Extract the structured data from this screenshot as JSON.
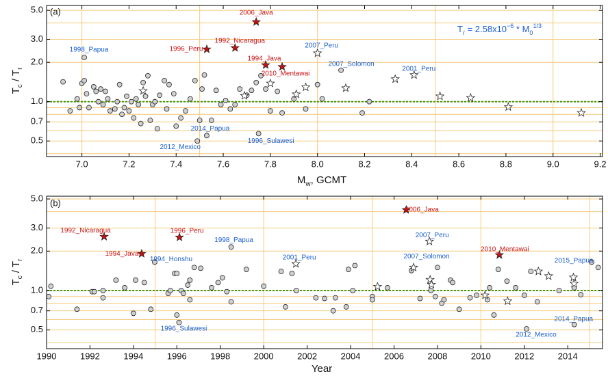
{
  "chart_data": [
    {
      "type": "scatter",
      "panel_label": "(a)",
      "x_label": [
        "M",
        "w",
        ", GCMT"
      ],
      "y_label": [
        "T",
        "c",
        " / T",
        "r"
      ],
      "formula": [
        "T",
        "r",
        " = 2.58x10",
        "−6",
        " * M",
        "0",
        "1/3"
      ],
      "xlim": [
        6.85,
        9.21
      ],
      "ylim": [
        0.38,
        5.45
      ],
      "log_y": true,
      "xticks": [
        {
          "value": 7.0,
          "label": "7.0"
        },
        7.2,
        7.4,
        7.6,
        7.8,
        {
          "value": 8.0,
          "label": "8.0"
        },
        8.2,
        8.4,
        8.6,
        8.8,
        {
          "value": 9.0,
          "label": "9.0"
        },
        9.2
      ],
      "yticks": [
        0.5,
        0.7,
        {
          "value": 1,
          "label": "1.0"
        },
        {
          "value": 2,
          "label": "2.0"
        },
        {
          "value": 3,
          "label": "3.0"
        },
        {
          "value": 5,
          "label": "5.0"
        }
      ],
      "ygrid": [
        0.4,
        0.5,
        0.6,
        0.7,
        0.8,
        0.9,
        1,
        2,
        3,
        4,
        5
      ],
      "xgrid": [
        7.0,
        7.5,
        8.0,
        8.5,
        9.0
      ],
      "grid_color": "#f5c97a",
      "reference_line": 1,
      "reference_color": "#3a9a1a",
      "series": [
        {
          "marker": "circle",
          "color": "#d0d0d0",
          "x": [
            6.92,
            6.95,
            6.98,
            6.99,
            7.0,
            7.01,
            7.02,
            7.03,
            7.05,
            7.06,
            7.07,
            7.08,
            7.09,
            7.1,
            7.11,
            7.12,
            7.14,
            7.15,
            7.16,
            7.17,
            7.18,
            7.19,
            7.2,
            7.21,
            7.22,
            7.23,
            7.24,
            7.25,
            7.26,
            7.27,
            7.28,
            7.29,
            7.3,
            7.31,
            7.32,
            7.33,
            7.35,
            7.36,
            7.37,
            7.39,
            7.4,
            7.42,
            7.44,
            7.46,
            7.48,
            7.5,
            7.51,
            7.52,
            7.55,
            7.57,
            7.59,
            7.61,
            7.63,
            7.65,
            7.67,
            7.7,
            7.72,
            7.74,
            7.76,
            7.78,
            7.8,
            7.83,
            7.85,
            7.9,
            7.95,
            8.0,
            8.02,
            8.19,
            8.22
          ],
          "values": [
            1.42,
            0.85,
            1.05,
            0.9,
            1.38,
            1.45,
            1.15,
            0.9,
            1.3,
            1.2,
            1.0,
            1.25,
            0.95,
            1.2,
            1.05,
            0.85,
            0.88,
            1.0,
            1.35,
            0.8,
            0.9,
            1.1,
            0.85,
            1.0,
            0.75,
            1.05,
            0.95,
            0.68,
            1.4,
            1.1,
            1.58,
            0.72,
            0.95,
            1.0,
            0.62,
            1.12,
            1.45,
            0.88,
            1.35,
            1.15,
            0.65,
            0.75,
            0.85,
            1.05,
            1.45,
            0.72,
            1.25,
            1.6,
            0.72,
            1.22,
            0.95,
            1.02,
            0.88,
            0.95,
            1.25,
            1.12,
            1.22,
            1.4,
            1.58,
            1.25,
            0.85,
            1.2,
            0.82,
            1.05,
            0.88,
            1.35,
            1.05,
            0.82,
            1.0
          ]
        },
        {
          "marker": "star",
          "color": "#ffffff",
          "x": [
            7.26,
            7.69,
            7.8,
            7.91,
            7.95,
            8.12,
            8.33,
            8.52,
            8.65,
            8.81,
            9.12
          ],
          "values": [
            1.21,
            1.11,
            1.38,
            1.14,
            1.29,
            1.27,
            1.49,
            1.1,
            1.07,
            0.91,
            0.82
          ]
        },
        {
          "marker": "star",
          "color": "#cc1111",
          "label_color": "#cc1111",
          "x": [
            7.74,
            7.65,
            7.53,
            7.78,
            7.85
          ],
          "values": [
            4.08,
            2.58,
            2.52,
            1.91,
            1.85
          ],
          "labels": [
            "2006_Java",
            "1992_Nicaragua",
            "1996_Peru",
            "1994_Java",
            "2010_Mentawai"
          ]
        },
        {
          "marker": "star",
          "color": "#ffffff",
          "label_color": "#1a5fd0",
          "x": [
            8.0,
            8.41
          ],
          "values": [
            2.35,
            1.6
          ],
          "labels": [
            "2007_Peru",
            "2001_Peru"
          ]
        },
        {
          "marker": "circle",
          "color": "#d0d0d0",
          "label_color": "#1a5fd0",
          "x": [
            7.01,
            8.1,
            7.49,
            7.53,
            7.75
          ],
          "values": [
            2.18,
            1.74,
            0.5,
            0.55,
            0.57
          ],
          "labels": [
            "1998_Papua",
            "2007_Solomon",
            "2012_Mexico",
            "2014_Papua",
            "1996_Sulawesi"
          ]
        }
      ]
    },
    {
      "type": "scatter",
      "panel_label": "(b)",
      "x_label": [
        "Year"
      ],
      "y_label": [
        "T",
        "c",
        " / T",
        "r"
      ],
      "xlim": [
        1990,
        2015.6
      ],
      "ylim": [
        0.36,
        5.25
      ],
      "log_y": true,
      "xticks": [
        1990,
        1992,
        1994,
        1996,
        1998,
        2000,
        2002,
        2004,
        2006,
        2008,
        2010,
        2012,
        2014
      ],
      "yticks": [
        0.5,
        0.7,
        {
          "value": 1,
          "label": "1.0"
        },
        {
          "value": 2,
          "label": "2.0"
        },
        {
          "value": 3,
          "label": "3.0"
        },
        {
          "value": 5,
          "label": "5.0"
        }
      ],
      "ygrid": [
        0.4,
        0.5,
        0.6,
        0.7,
        0.8,
        0.9,
        1,
        2,
        3,
        4,
        5
      ],
      "xgrid": [
        1995,
        2000,
        2005,
        2010,
        2015
      ],
      "grid_color": "#f5c97a",
      "reference_line": 1,
      "reference_color": "#3a9a1a",
      "series": [
        {
          "marker": "circle",
          "color": "#d0d0d0",
          "x": [
            1990.1,
            1990.2,
            1991.4,
            1992.1,
            1992.2,
            1992.6,
            1992.6,
            1993.2,
            1993.6,
            1994.1,
            1994.0,
            1994.5,
            1994.8,
            1995.6,
            1995.7,
            1995.9,
            1996.0,
            1996.0,
            1996.2,
            1996.3,
            1996.5,
            1996.6,
            1996.6,
            1996.8,
            1997.1,
            1997.6,
            1997.9,
            1998.1,
            1998.3,
            1998.5,
            1999.2,
            2000.0,
            2000.8,
            2001.0,
            2001.3,
            2001.5,
            2002.4,
            2002.8,
            2003.2,
            2003.3,
            2003.8,
            2003.9,
            2004.1,
            2004.2,
            2005.0,
            2005.0,
            2005.7,
            2006.8,
            2007.2,
            2007.7,
            2007.9,
            2008.0,
            2008.2,
            2008.3,
            2008.6,
            2008.7,
            2009.0,
            2009.5,
            2009.8,
            2010.3,
            2010.4,
            2010.6,
            2010.8,
            2011.2,
            2011.6,
            2012.0,
            2012.3,
            2012.6,
            2013.6,
            2014.3,
            2014.6,
            2015.4
          ],
          "values": [
            0.9,
            1.08,
            0.72,
            0.98,
            0.98,
            0.88,
            1.0,
            1.2,
            1.05,
            1.2,
            0.67,
            1.15,
            0.72,
            0.95,
            1.0,
            1.35,
            1.35,
            0.65,
            1.0,
            0.95,
            1.1,
            0.85,
            1.2,
            1.5,
            1.48,
            1.05,
            1.15,
            1.25,
            0.98,
            0.82,
            1.45,
            1.08,
            1.4,
            0.75,
            1.35,
            1.0,
            0.88,
            0.87,
            0.7,
            0.88,
            0.75,
            1.45,
            1.0,
            1.55,
            0.9,
            0.85,
            1.05,
            1.42,
            0.87,
            1.0,
            0.9,
            1.5,
            0.8,
            0.85,
            1.2,
            1.15,
            0.72,
            0.88,
            0.92,
            0.85,
            1.05,
            0.65,
            1.45,
            1.18,
            1.05,
            0.92,
            1.4,
            0.82,
            1.0,
            1.05,
            0.93,
            1.5
          ]
        },
        {
          "marker": "star",
          "color": "#ffffff",
          "x": [
            2005.24,
            2007.66,
            2007.72,
            2010.19,
            2011.23,
            2012.65,
            2013.12,
            2014.26,
            2014.29
          ],
          "values": [
            1.07,
            1.21,
            1.11,
            0.92,
            0.83,
            1.4,
            1.29,
            1.26,
            1.13
          ]
        },
        {
          "marker": "star",
          "color": "#cc1111",
          "label_color": "#cc1111",
          "x": [
            2006.56,
            1992.65,
            1996.12,
            1994.38,
            2010.85
          ],
          "values": [
            4.13,
            2.58,
            2.55,
            1.91,
            1.87
          ],
          "labels": [
            "2006_Java",
            "1992_Nicaragua",
            "1996_Peru",
            "1994_Java",
            "2010_Mentawai"
          ]
        },
        {
          "marker": "star",
          "color": "#ffffff",
          "label_color": "#1a5fd0",
          "x": [
            2007.63,
            2001.48,
            2006.9
          ],
          "values": [
            2.37,
            1.6,
            1.5
          ],
          "labels": [
            "2007_Peru",
            "2001_Peru",
            "2007_Solomon"
          ]
        },
        {
          "marker": "circle",
          "color": "#d0d0d0",
          "label_color": "#1a5fd0",
          "x": [
            1998.5,
            1994.98,
            1996.1,
            2012.1,
            2014.3,
            2015.1
          ],
          "values": [
            2.15,
            1.65,
            0.57,
            0.51,
            0.55,
            1.65
          ],
          "labels": [
            "1998_Papua",
            "1994_Honshu",
            "1996_Sulawesi",
            "2012_Mexico",
            "2014_Papua",
            "2015_Papua"
          ]
        }
      ]
    }
  ]
}
